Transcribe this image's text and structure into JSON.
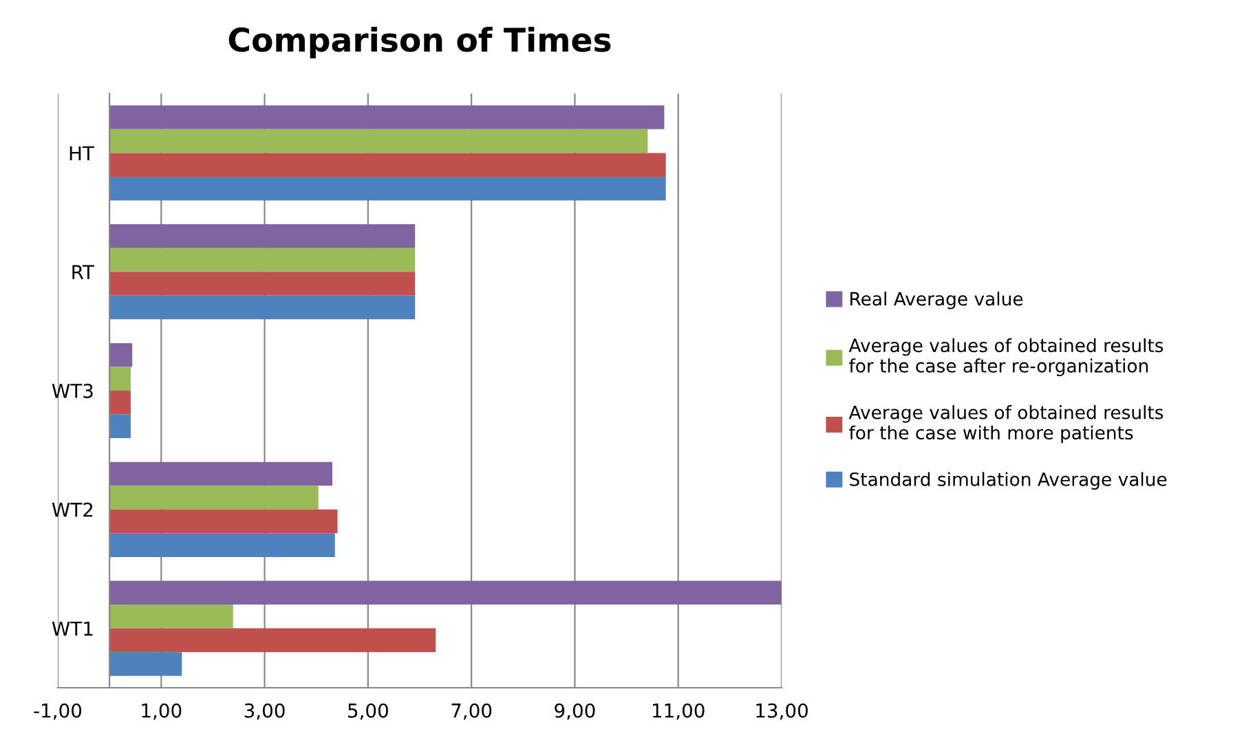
{
  "chart_data": {
    "type": "bar",
    "orientation": "horizontal",
    "title": "Comparison of Times",
    "categories": [
      "HT",
      "RT",
      "WT3",
      "WT2",
      "WT1"
    ],
    "series": [
      {
        "name": "Real Average value",
        "color": "#8064a2",
        "values": [
          10.73,
          5.91,
          0.44,
          4.31,
          13.0
        ]
      },
      {
        "name": "Average values of obtained results\nfor the case after re-organization",
        "color": "#9bbb59",
        "values": [
          10.41,
          5.91,
          0.41,
          4.04,
          2.39
        ]
      },
      {
        "name": "Average values of obtained results\nfor the case with more patients",
        "color": "#c0504d",
        "values": [
          10.76,
          5.91,
          0.41,
          4.41,
          6.31
        ]
      },
      {
        "name": "Standard simulation Average value",
        "color": "#4f81bd",
        "values": [
          10.76,
          5.91,
          0.41,
          4.36,
          1.4
        ]
      }
    ],
    "xlim": [
      -1,
      13
    ],
    "xticks": [
      {
        "value": -1,
        "label": "-1,00"
      },
      {
        "value": 1,
        "label": "1,00"
      },
      {
        "value": 3,
        "label": "3,00"
      },
      {
        "value": 5,
        "label": "5,00"
      },
      {
        "value": 7,
        "label": "7,00"
      },
      {
        "value": 9,
        "label": "9,00"
      },
      {
        "value": 11,
        "label": "11,00"
      },
      {
        "value": 13,
        "label": "13,00"
      }
    ],
    "grid": "x",
    "legend": "right"
  }
}
